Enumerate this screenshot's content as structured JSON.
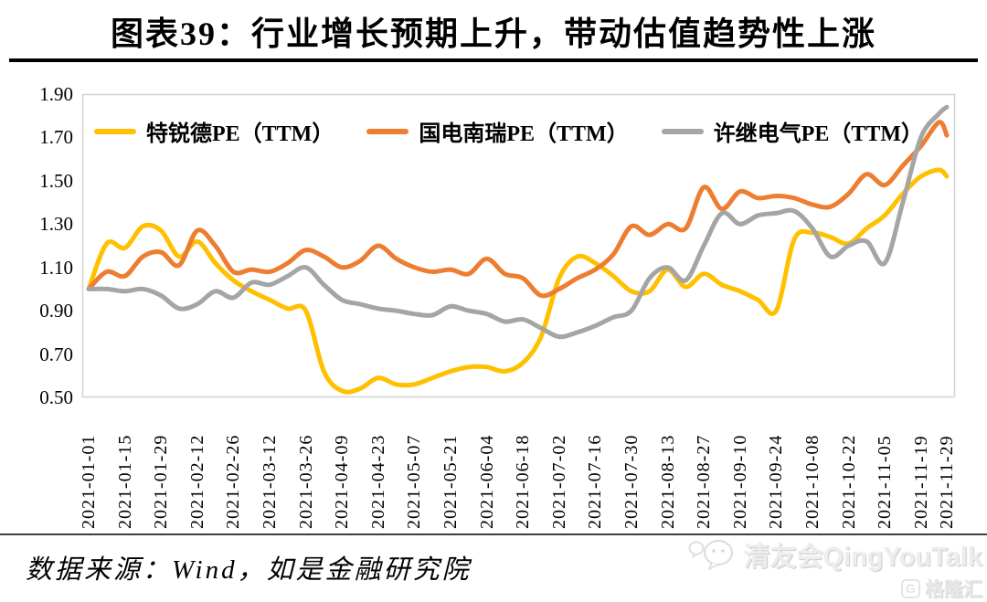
{
  "title": "图表39：行业增长预期上升，带动估值趋势性上涨",
  "source_note": "数据来源：Wind，如是金融研究院",
  "watermark": {
    "account": "清友会QingYouTalk",
    "logo_mark": "G",
    "logo_text": "格隆汇"
  },
  "chart_data": {
    "type": "line",
    "title": "图表39：行业增长预期上升，带动估值趋势性上涨",
    "xlabel": "",
    "ylabel": "",
    "ylim": [
      0.5,
      1.9
    ],
    "grid": false,
    "legend_position": "top",
    "y_ticks": [
      "1.90",
      "1.70",
      "1.50",
      "1.30",
      "1.10",
      "0.90",
      "0.70",
      "0.50"
    ],
    "x_tick_labels": [
      "2021-01-01",
      "2021-01-15",
      "2021-01-29",
      "2021-02-12",
      "2021-02-26",
      "2021-03-12",
      "2021-03-26",
      "2021-04-09",
      "2021-04-23",
      "2021-05-07",
      "2021-05-21",
      "2021-06-04",
      "2021-06-18",
      "2021-07-02",
      "2021-07-16",
      "2021-07-30",
      "2021-08-13",
      "2021-08-27",
      "2021-09-10",
      "2021-09-24",
      "2021-10-08",
      "2021-10-22",
      "2021-11-05",
      "2021-11-19",
      "2021-11-29"
    ],
    "x_tick_days": [
      0,
      14,
      28,
      42,
      56,
      70,
      84,
      98,
      112,
      126,
      140,
      154,
      168,
      182,
      196,
      210,
      224,
      238,
      252,
      266,
      280,
      294,
      308,
      322,
      332
    ],
    "x_total_days": 332,
    "sample_days": [
      0,
      7,
      14,
      21,
      28,
      35,
      42,
      49,
      56,
      63,
      70,
      77,
      84,
      91,
      98,
      105,
      112,
      119,
      126,
      133,
      140,
      147,
      154,
      161,
      168,
      175,
      182,
      189,
      196,
      203,
      210,
      217,
      224,
      231,
      238,
      245,
      252,
      259,
      266,
      273,
      280,
      287,
      294,
      301,
      308,
      315,
      322,
      329,
      332
    ],
    "series": [
      {
        "name": "特锐德PE（TTM）",
        "color": "#FFC000",
        "values": [
          1.0,
          1.21,
          1.19,
          1.29,
          1.27,
          1.15,
          1.22,
          1.12,
          1.04,
          0.99,
          0.95,
          0.91,
          0.9,
          0.62,
          0.53,
          0.54,
          0.59,
          0.56,
          0.56,
          0.59,
          0.62,
          0.64,
          0.64,
          0.62,
          0.66,
          0.78,
          1.05,
          1.15,
          1.12,
          1.06,
          0.99,
          0.99,
          1.09,
          1.01,
          1.07,
          1.02,
          0.99,
          0.95,
          0.9,
          1.23,
          1.26,
          1.24,
          1.21,
          1.28,
          1.34,
          1.44,
          1.52,
          1.55,
          1.52
        ]
      },
      {
        "name": "国电南瑞PE（TTM）",
        "color": "#ED7D31",
        "values": [
          1.0,
          1.08,
          1.06,
          1.15,
          1.17,
          1.11,
          1.27,
          1.2,
          1.08,
          1.09,
          1.08,
          1.12,
          1.18,
          1.15,
          1.1,
          1.13,
          1.2,
          1.14,
          1.1,
          1.08,
          1.09,
          1.07,
          1.14,
          1.07,
          1.05,
          0.97,
          1.0,
          1.05,
          1.09,
          1.16,
          1.29,
          1.25,
          1.3,
          1.28,
          1.47,
          1.37,
          1.45,
          1.42,
          1.43,
          1.42,
          1.39,
          1.38,
          1.44,
          1.53,
          1.48,
          1.57,
          1.66,
          1.77,
          1.71
        ]
      },
      {
        "name": "许继电气PE（TTM）",
        "color": "#A5A5A5",
        "values": [
          1.0,
          1.0,
          0.99,
          1.0,
          0.97,
          0.91,
          0.93,
          0.99,
          0.96,
          1.03,
          1.02,
          1.06,
          1.1,
          1.02,
          0.95,
          0.93,
          0.91,
          0.9,
          0.885,
          0.88,
          0.92,
          0.9,
          0.885,
          0.85,
          0.86,
          0.82,
          0.78,
          0.8,
          0.83,
          0.87,
          0.9,
          1.05,
          1.1,
          1.04,
          1.2,
          1.35,
          1.3,
          1.34,
          1.35,
          1.36,
          1.28,
          1.15,
          1.2,
          1.22,
          1.12,
          1.4,
          1.7,
          1.81,
          1.84
        ]
      }
    ]
  }
}
